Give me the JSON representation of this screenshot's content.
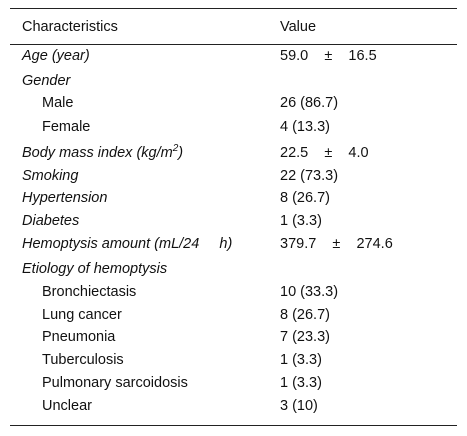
{
  "table": {
    "header": [
      "Characteristics",
      "Value"
    ],
    "rows": [
      {
        "label": "Age (year)",
        "value": "59.0    ±    16.5",
        "italic": true,
        "indent": false
      },
      {
        "label": "Gender",
        "value": null,
        "italic": true,
        "indent": false
      },
      {
        "label": "Male",
        "value": "26 (86.7)",
        "italic": false,
        "indent": true
      },
      {
        "label": "Female",
        "value": "4 (13.3)",
        "italic": false,
        "indent": true
      },
      {
        "label": "Body mass index (kg/m",
        "label_sup": "2",
        "label_end": ")",
        "value": "22.5    ±    4.0",
        "italic": true,
        "indent": false
      },
      {
        "label": "Smoking",
        "value": "22 (73.3)",
        "italic": true,
        "indent": false
      },
      {
        "label": "Hypertension",
        "value": "8 (26.7)",
        "italic": true,
        "indent": false
      },
      {
        "label": "Diabetes",
        "value": "1 (3.3)",
        "italic": true,
        "indent": false
      },
      {
        "label": "Hemoptysis amount (mL/24     h)",
        "value": "379.7    ±    274.6",
        "italic": true,
        "indent": false
      },
      {
        "label": "Etiology of hemoptysis",
        "value": null,
        "italic": true,
        "indent": false
      },
      {
        "label": "Bronchiectasis",
        "value": "10 (33.3)",
        "italic": false,
        "indent": true
      },
      {
        "label": "Lung cancer",
        "value": "8 (26.7)",
        "italic": false,
        "indent": true
      },
      {
        "label": "Pneumonia",
        "value": "7 (23.3)",
        "italic": false,
        "indent": true
      },
      {
        "label": "Tuberculosis",
        "value": "1 (3.3)",
        "italic": false,
        "indent": true
      },
      {
        "label": "Pulmonary sarcoidosis",
        "value": "1 (3.3)",
        "italic": false,
        "indent": true
      },
      {
        "label": "Unclear",
        "value": "3 (10)",
        "italic": false,
        "indent": true
      }
    ]
  }
}
